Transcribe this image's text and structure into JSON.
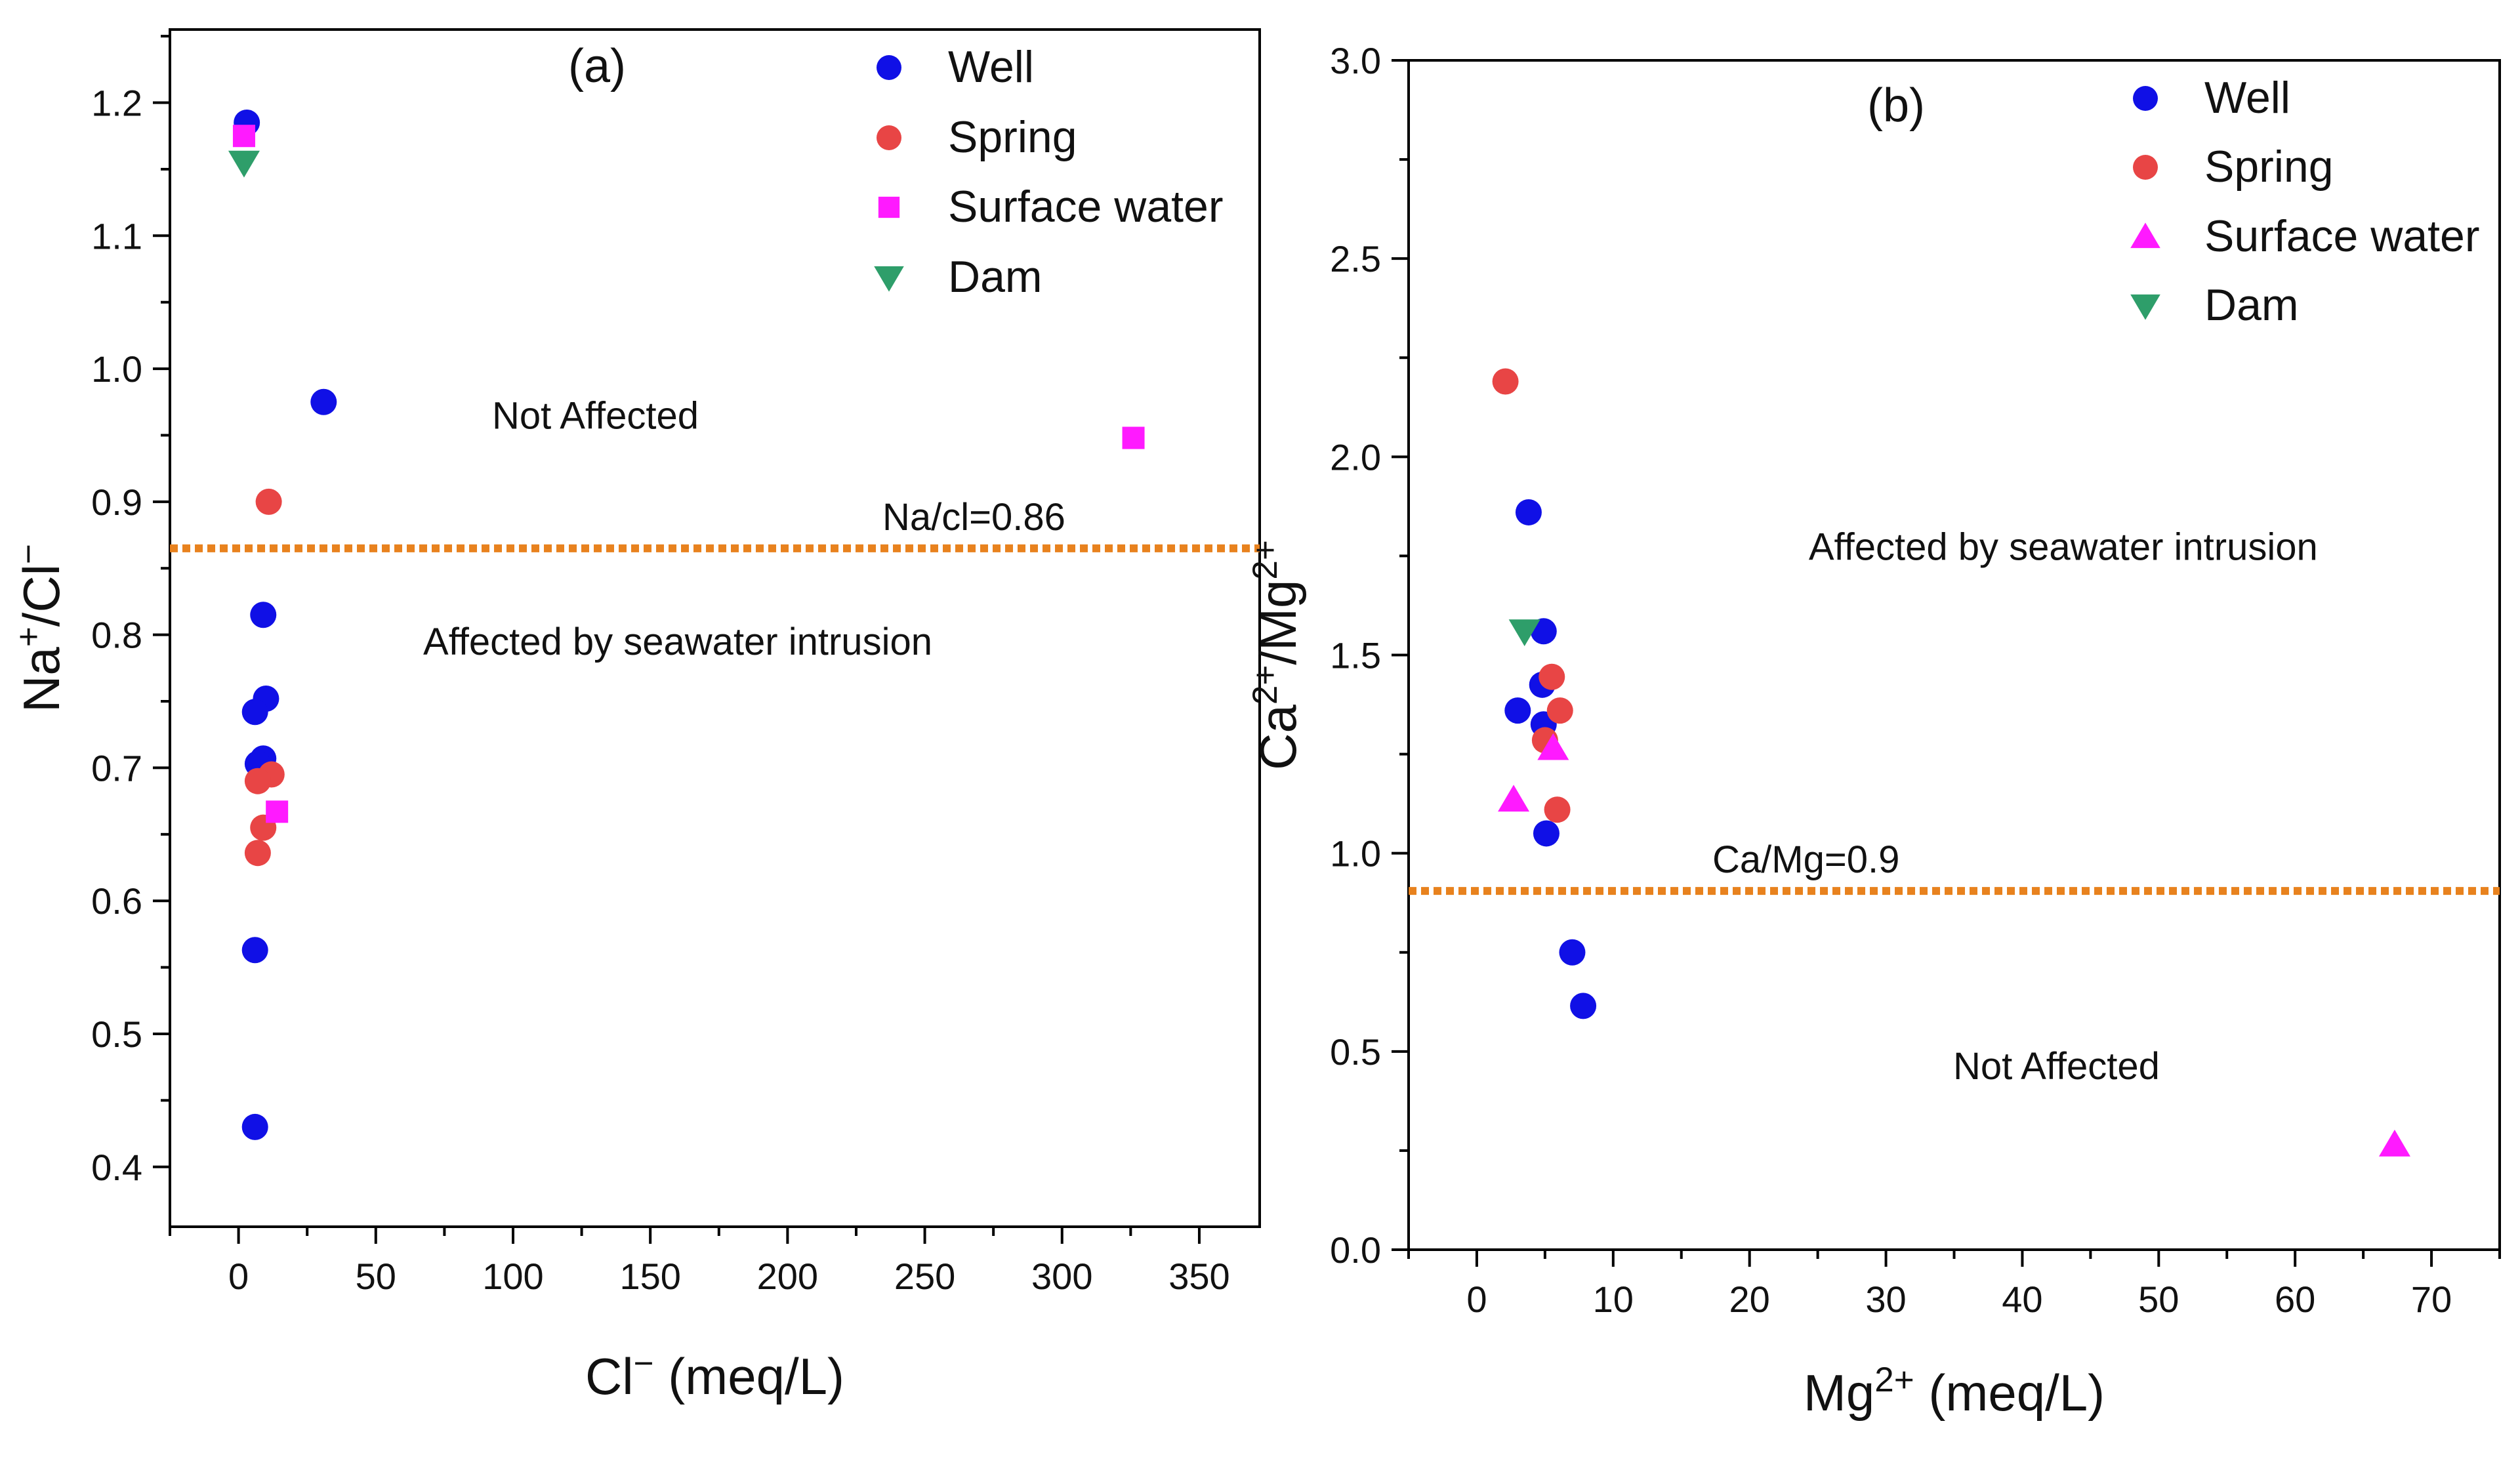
{
  "colors": {
    "Well": "#1010e6",
    "Spring": "#e84545",
    "Surface water": "#ff1aff",
    "Dam": "#2e9e6a",
    "threshold": "#e8821e"
  },
  "chart_data": [
    {
      "type": "scatter",
      "panel_label": "(a)",
      "xlabel": "Cl⁻ (meq/L)",
      "ylabel": "Na⁺/Cl⁻",
      "xlim": [
        -25,
        372
      ],
      "ylim": [
        0.355,
        1.255
      ],
      "xticks": [
        0,
        50,
        100,
        150,
        200,
        250,
        300,
        350
      ],
      "yticks": [
        0.4,
        0.5,
        0.6,
        0.7,
        0.8,
        0.9,
        1.0,
        1.1,
        1.2
      ],
      "yticks_text": [
        "0.4",
        "0.5",
        "0.6",
        "0.7",
        "0.8",
        "0.9",
        "1.0",
        "1.1",
        "1.2"
      ],
      "grid": false,
      "legend_position": "top-right",
      "threshold": {
        "y": 0.865,
        "label": "Na/cl=0.86"
      },
      "annotations": [
        {
          "text": "Not Affected",
          "x": 130,
          "y": 0.955
        },
        {
          "text": "Affected by seawater intrusion",
          "x": 160,
          "y": 0.785
        }
      ],
      "series": [
        {
          "name": "Well",
          "marker": "circle",
          "points": [
            [
              3,
              1.185
            ],
            [
              31,
              0.975
            ],
            [
              9,
              0.815
            ],
            [
              10,
              0.752
            ],
            [
              6,
              0.742
            ],
            [
              9,
              0.707
            ],
            [
              7,
              0.703
            ],
            [
              6,
              0.563
            ],
            [
              6,
              0.43
            ]
          ]
        },
        {
          "name": "Spring",
          "marker": "circle",
          "points": [
            [
              11,
              0.9
            ],
            [
              12,
              0.695
            ],
            [
              7,
              0.69
            ],
            [
              9,
              0.655
            ],
            [
              7,
              0.636
            ]
          ]
        },
        {
          "name": "Surface water",
          "marker": "square",
          "points": [
            [
              2,
              1.175
            ],
            [
              326,
              0.948
            ],
            [
              14,
              0.667
            ]
          ]
        },
        {
          "name": "Dam",
          "marker": "triangle-down",
          "points": [
            [
              2,
              1.155
            ]
          ]
        }
      ]
    },
    {
      "type": "scatter",
      "panel_label": "(b)",
      "xlabel": "Mg²⁺ (meq/L)",
      "ylabel": "Ca²⁺/Mg²⁺",
      "xlim": [
        -5,
        75
      ],
      "ylim": [
        0,
        3
      ],
      "xticks": [
        0,
        10,
        20,
        30,
        40,
        50,
        60,
        70
      ],
      "yticks": [
        0,
        0.5,
        1.0,
        1.5,
        2.0,
        2.5,
        3.0
      ],
      "yticks_text": [
        "0.0",
        "0.5",
        "1.0",
        "1.5",
        "2.0",
        "2.5",
        "3.0"
      ],
      "grid": false,
      "legend_position": "top-right",
      "threshold": {
        "y": 0.905,
        "label": "Ca/Mg=0.9"
      },
      "annotations": [
        {
          "text": "Affected by seawater intrusion",
          "x": 43,
          "y": 1.74
        },
        {
          "text": "Not Affected",
          "x": 42.5,
          "y": 0.43
        }
      ],
      "series": [
        {
          "name": "Well",
          "marker": "circle",
          "points": [
            [
              3.8,
              1.86
            ],
            [
              4.9,
              1.56
            ],
            [
              4.8,
              1.425
            ],
            [
              3.0,
              1.36
            ],
            [
              4.9,
              1.325
            ],
            [
              5.1,
              1.05
            ],
            [
              7.0,
              0.75
            ],
            [
              7.8,
              0.615
            ]
          ]
        },
        {
          "name": "Spring",
          "marker": "circle",
          "points": [
            [
              2.1,
              2.19
            ],
            [
              5.5,
              1.445
            ],
            [
              6.1,
              1.36
            ],
            [
              5.0,
              1.285
            ],
            [
              5.9,
              1.11
            ]
          ]
        },
        {
          "name": "Surface water",
          "marker": "triangle-up",
          "points": [
            [
              5.6,
              1.265
            ],
            [
              2.7,
              1.135
            ],
            [
              67.3,
              0.265
            ]
          ]
        },
        {
          "name": "Dam",
          "marker": "triangle-down",
          "points": [
            [
              3.5,
              1.56
            ]
          ]
        }
      ]
    }
  ]
}
